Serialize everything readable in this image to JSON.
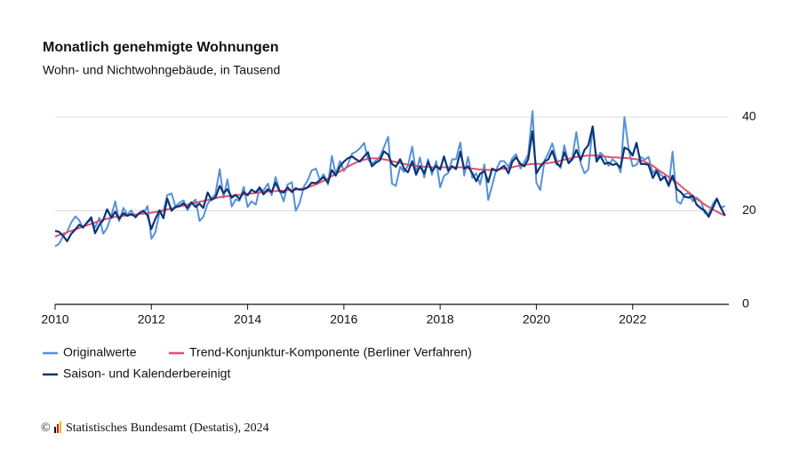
{
  "chart_data": {
    "type": "line",
    "title": "Monatlich genehmigte Wohnungen",
    "subtitle": "Wohn- und Nichtwohngebäude, in Tausend",
    "source_symbol": "©",
    "source": "Statistisches Bundesamt (Destatis), 2024",
    "xlim": [
      2010,
      2024
    ],
    "xticks": [
      2010,
      2012,
      2014,
      2016,
      2018,
      2020,
      2022
    ],
    "ylim": [
      0,
      40
    ],
    "yticks": [
      0,
      20,
      40
    ],
    "grid": true,
    "x": [
      2010,
      2010.08,
      2010.17,
      2010.25,
      2010.33,
      2010.42,
      2010.5,
      2010.58,
      2010.67,
      2010.75,
      2010.83,
      2010.92,
      2011,
      2011.08,
      2011.17,
      2011.25,
      2011.33,
      2011.42,
      2011.5,
      2011.58,
      2011.67,
      2011.75,
      2011.83,
      2011.92,
      2012,
      2012.08,
      2012.17,
      2012.25,
      2012.33,
      2012.42,
      2012.5,
      2012.58,
      2012.67,
      2012.75,
      2012.83,
      2012.92,
      2013,
      2013.08,
      2013.17,
      2013.25,
      2013.33,
      2013.42,
      2013.5,
      2013.58,
      2013.67,
      2013.75,
      2013.83,
      2013.92,
      2014,
      2014.08,
      2014.17,
      2014.25,
      2014.33,
      2014.42,
      2014.5,
      2014.58,
      2014.67,
      2014.75,
      2014.83,
      2014.92,
      2015,
      2015.08,
      2015.17,
      2015.25,
      2015.33,
      2015.42,
      2015.5,
      2015.58,
      2015.67,
      2015.75,
      2015.83,
      2015.92,
      2016,
      2016.08,
      2016.17,
      2016.25,
      2016.33,
      2016.42,
      2016.5,
      2016.58,
      2016.67,
      2016.75,
      2016.83,
      2016.92,
      2017,
      2017.08,
      2017.17,
      2017.25,
      2017.33,
      2017.42,
      2017.5,
      2017.58,
      2017.67,
      2017.75,
      2017.83,
      2017.92,
      2018,
      2018.08,
      2018.17,
      2018.25,
      2018.33,
      2018.42,
      2018.5,
      2018.58,
      2018.67,
      2018.75,
      2018.83,
      2018.92,
      2019,
      2019.08,
      2019.17,
      2019.25,
      2019.33,
      2019.42,
      2019.5,
      2019.58,
      2019.67,
      2019.75,
      2019.83,
      2019.92,
      2020,
      2020.08,
      2020.17,
      2020.25,
      2020.33,
      2020.42,
      2020.5,
      2020.58,
      2020.67,
      2020.75,
      2020.83,
      2020.92,
      2021,
      2021.08,
      2021.17,
      2021.25,
      2021.33,
      2021.42,
      2021.5,
      2021.58,
      2021.67,
      2021.75,
      2021.83,
      2021.92,
      2022,
      2022.08,
      2022.17,
      2022.25,
      2022.33,
      2022.42,
      2022.5,
      2022.58,
      2022.67,
      2022.75,
      2022.83,
      2022.92,
      2023,
      2023.08,
      2023.17,
      2023.25,
      2023.33,
      2023.42,
      2023.5,
      2023.58,
      2023.67,
      2023.75,
      2023.83,
      2023.92
    ],
    "series": [
      {
        "name": "Originalwerte",
        "color": "#5591d8",
        "values": [
          12.4,
          12.9,
          14.6,
          15.5,
          17.4,
          18.8,
          18.0,
          16.3,
          17.7,
          18.0,
          16.4,
          18.5,
          15.1,
          16.3,
          19.0,
          22.0,
          17.8,
          20.6,
          19.1,
          20.1,
          18.5,
          19.6,
          19.3,
          21.0,
          14.0,
          15.3,
          19.6,
          20.0,
          23.3,
          23.7,
          20.9,
          21.7,
          22.2,
          20.1,
          21.5,
          22.4,
          17.8,
          18.7,
          21.5,
          22.6,
          23.5,
          28.9,
          22.8,
          26.7,
          20.9,
          22.4,
          22.1,
          25.1,
          20.8,
          22.0,
          21.3,
          24.8,
          24.3,
          25.8,
          23.3,
          27.2,
          24.2,
          22.0,
          25.6,
          26.1,
          20.0,
          21.6,
          25.2,
          26.5,
          28.6,
          29.0,
          26.6,
          27.8,
          25.6,
          31.7,
          27.8,
          30.6,
          28.5,
          29.8,
          32.2,
          32.6,
          33.3,
          34.5,
          31.0,
          30.0,
          30.8,
          31.6,
          33.5,
          35.8,
          25.8,
          25.3,
          29.4,
          28.3,
          29.6,
          33.7,
          28.1,
          31.4,
          27.1,
          31.0,
          27.7,
          30.6,
          25.0,
          27.4,
          28.1,
          31.0,
          31.0,
          34.6,
          27.5,
          31.5,
          27.0,
          28.0,
          25.6,
          29.9,
          22.3,
          25.4,
          28.9,
          30.6,
          30.6,
          29.4,
          31.2,
          32.1,
          29.0,
          30.4,
          32.0,
          41.3,
          26.0,
          24.4,
          30.8,
          32.3,
          34.4,
          30.8,
          29.1,
          34.0,
          30.1,
          31.5,
          36.8,
          30.2,
          28.0,
          28.8,
          38.0,
          30.8,
          32.4,
          31.5,
          29.6,
          31.0,
          30.2,
          28.2,
          40.0,
          33.0,
          29.5,
          29.8,
          31.5,
          30.9,
          31.5,
          28.0,
          29.0,
          27.7,
          27.0,
          25.2,
          32.6,
          22.0,
          21.5,
          23.5,
          23.8,
          22.0,
          22.8,
          22.0,
          19.5,
          19.3,
          21.5,
          22.7,
          20.7,
          21.0
        ]
      },
      {
        "name": "Trend-Konjunktur-Komponente (Berliner Verfahren)",
        "color": "#e2506c",
        "values": [
          14.5,
          14.8,
          15.1,
          15.4,
          15.7,
          16.0,
          16.3,
          16.6,
          16.9,
          17.2,
          17.5,
          17.8,
          18.1,
          18.3,
          18.5,
          18.7,
          18.8,
          18.9,
          19.0,
          19.1,
          19.2,
          19.3,
          19.4,
          19.5,
          19.6,
          19.7,
          19.9,
          20.1,
          20.3,
          20.5,
          20.7,
          20.9,
          21.1,
          21.3,
          21.5,
          21.7,
          21.9,
          22.1,
          22.3,
          22.5,
          22.7,
          22.9,
          23.0,
          23.1,
          23.2,
          23.3,
          23.4,
          23.5,
          23.6,
          23.7,
          23.8,
          23.9,
          24.0,
          24.1,
          24.2,
          24.2,
          24.3,
          24.3,
          24.4,
          24.4,
          24.5,
          24.6,
          24.8,
          25.0,
          25.3,
          25.6,
          26.0,
          26.4,
          26.9,
          27.4,
          27.9,
          28.4,
          28.9,
          29.4,
          29.9,
          30.3,
          30.6,
          30.9,
          31.1,
          31.2,
          31.2,
          31.1,
          31.0,
          30.8,
          30.6,
          30.4,
          30.2,
          30.0,
          29.8,
          29.7,
          29.6,
          29.5,
          29.4,
          29.4,
          29.3,
          29.3,
          29.3,
          29.3,
          29.3,
          29.3,
          29.3,
          29.3,
          29.2,
          29.1,
          29.0,
          28.9,
          28.8,
          28.8,
          28.7,
          28.7,
          28.8,
          28.9,
          29.0,
          29.1,
          29.3,
          29.5,
          29.7,
          29.8,
          29.9,
          30.0,
          30.0,
          30.0,
          30.1,
          30.2,
          30.3,
          30.5,
          30.7,
          30.9,
          31.1,
          31.3,
          31.5,
          31.6,
          31.7,
          31.8,
          31.8,
          31.8,
          31.7,
          31.6,
          31.5,
          31.4,
          31.4,
          31.3,
          31.3,
          31.2,
          31.1,
          31.0,
          30.8,
          30.5,
          30.1,
          29.6,
          29.0,
          28.4,
          27.8,
          27.2,
          26.6,
          26.0,
          25.3,
          24.6,
          23.9,
          23.2,
          22.5,
          21.9,
          21.3,
          20.8,
          20.3,
          19.8,
          19.4,
          19.0
        ]
      },
      {
        "name": "Saison- und Kalenderbereinigt",
        "color": "#0b3474",
        "values": [
          15.7,
          15.5,
          14.6,
          13.5,
          15.0,
          16.0,
          17.0,
          16.5,
          17.5,
          18.6,
          15.2,
          17.0,
          18.0,
          20.3,
          18.5,
          19.8,
          18.2,
          19.5,
          18.9,
          19.3,
          18.7,
          19.5,
          20.0,
          19.0,
          16.1,
          18.2,
          20.1,
          18.4,
          22.6,
          20.0,
          20.8,
          21.0,
          21.6,
          20.6,
          21.8,
          20.8,
          21.5,
          20.6,
          23.9,
          22.3,
          22.8,
          25.3,
          23.8,
          24.6,
          22.8,
          23.4,
          22.5,
          24.0,
          23.3,
          24.5,
          23.9,
          25.0,
          23.5,
          24.6,
          24.0,
          26.0,
          24.1,
          23.9,
          25.0,
          24.0,
          24.8,
          24.5,
          24.6,
          25.0,
          26.0,
          25.9,
          26.5,
          27.2,
          26.0,
          28.7,
          27.5,
          29.5,
          30.5,
          31.2,
          31.6,
          31.0,
          30.5,
          31.6,
          32.5,
          29.5,
          30.3,
          30.8,
          32.7,
          32.0,
          30.0,
          29.4,
          31.0,
          29.0,
          28.2,
          30.6,
          27.7,
          29.5,
          28.0,
          30.5,
          28.5,
          29.6,
          28.8,
          31.6,
          28.5,
          29.5,
          28.9,
          32.6,
          29.0,
          29.5,
          28.0,
          26.3,
          27.9,
          28.5,
          26.1,
          29.0,
          28.5,
          29.0,
          29.6,
          28.0,
          30.5,
          31.4,
          30.0,
          29.5,
          31.0,
          37.0,
          28.0,
          29.4,
          30.5,
          31.0,
          32.8,
          30.0,
          29.5,
          32.5,
          30.2,
          31.0,
          33.0,
          30.8,
          33.0,
          34.0,
          38.0,
          30.5,
          31.7,
          30.0,
          30.3,
          29.8,
          30.0,
          29.2,
          33.5,
          33.0,
          31.8,
          34.5,
          30.0,
          30.0,
          29.8,
          27.0,
          28.5,
          26.5,
          27.3,
          25.4,
          27.5,
          24.6,
          24.0,
          23.0,
          22.8,
          23.2,
          21.3,
          20.5,
          20.0,
          18.7,
          20.7,
          22.5,
          20.7,
          18.9
        ]
      }
    ]
  }
}
